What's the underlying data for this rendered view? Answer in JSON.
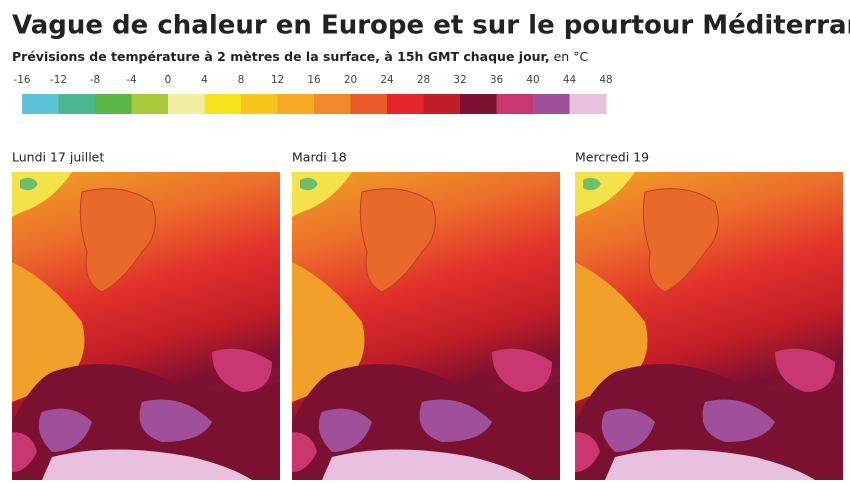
{
  "header": {
    "title": "Vague de chaleur en Europe et sur le pourtour Méditerranéen",
    "subtitle": "Prévisions de température à 2 mètres de la surface, à 15h GMT chaque jour,",
    "unit_note": " en °C"
  },
  "legend": {
    "ticks": [
      -16,
      -12,
      -8,
      -4,
      0,
      4,
      8,
      12,
      16,
      20,
      24,
      28,
      32,
      36,
      40,
      44,
      48
    ],
    "colors": [
      "#5cc3d9",
      "#4db590",
      "#5cb846",
      "#a6ca3c",
      "#f4eea2",
      "#f6e31d",
      "#f8c61b",
      "#f7a924",
      "#f28a2b",
      "#ec5b2b",
      "#e2262b",
      "#c11d27",
      "#7c1030",
      "#c93670",
      "#a0509b",
      "#eac0e0"
    ]
  },
  "panels": [
    {
      "label": "Lundi 17 juillet"
    },
    {
      "label": "Mardi 18"
    },
    {
      "label": "Mercredi 19"
    }
  ]
}
